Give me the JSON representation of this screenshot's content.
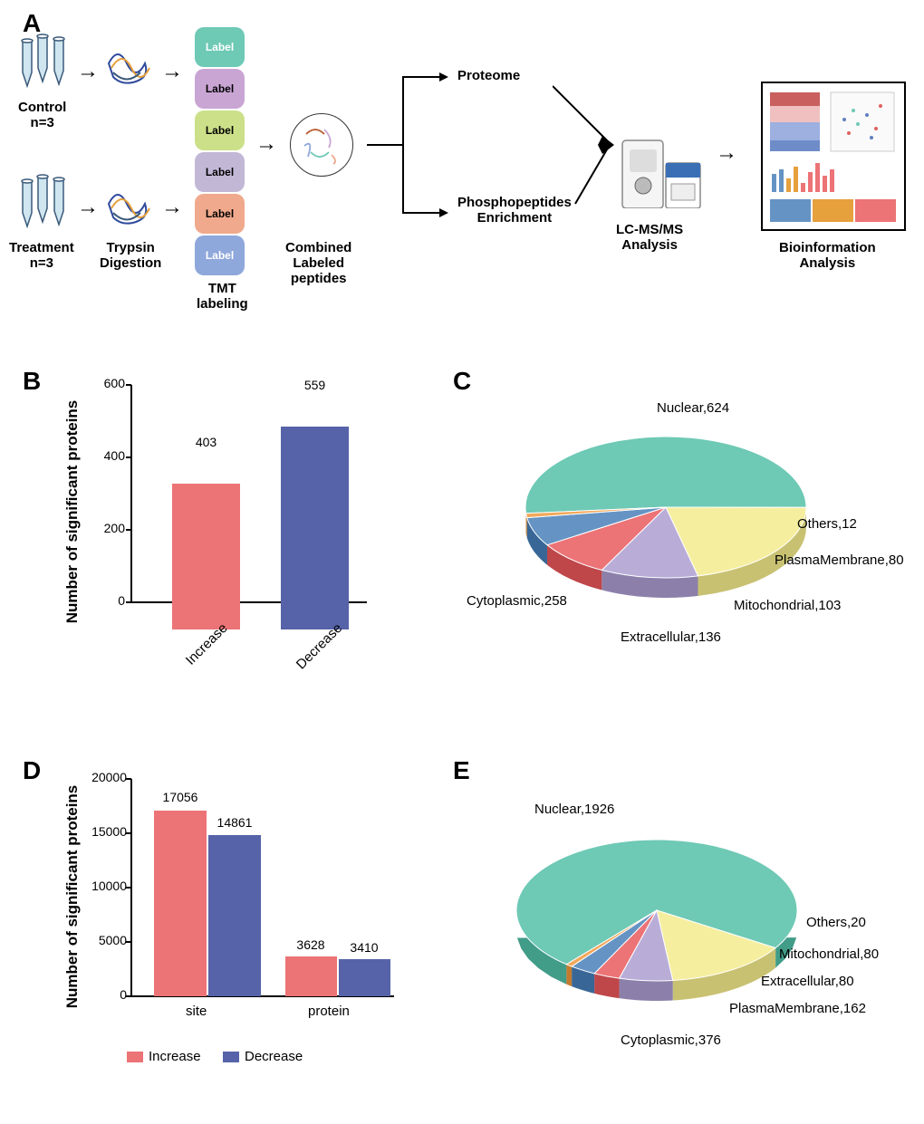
{
  "panels": {
    "A": "A",
    "B": "B",
    "C": "C",
    "D": "D",
    "E": "E"
  },
  "panelA": {
    "control": "Control",
    "control_n": "n=3",
    "treatment": "Treatment",
    "treatment_n": "n=3",
    "trypsin": "Trypsin",
    "digestion": "Digestion",
    "tmt": "TMT",
    "labeling": "labeling",
    "combined": "Combined",
    "labeled": "Labeled",
    "peptides": "peptides",
    "proteome": "Proteome",
    "phospho1": "Phosphopeptides",
    "phospho2": "Enrichment",
    "lcms": "LC-MS/MS",
    "analysis": "Analysis",
    "bioinfo1": "Bioinformation",
    "bioinfo2": "Analysis",
    "tmt_labels": [
      {
        "text": "Label",
        "bg": "#6ec9b5",
        "fg": "#ffffff"
      },
      {
        "text": "Label",
        "bg": "#c9a5d4",
        "fg": "#000000"
      },
      {
        "text": "Label",
        "bg": "#cce089",
        "fg": "#000000"
      },
      {
        "text": "Label",
        "bg": "#c2b8d6",
        "fg": "#000000"
      },
      {
        "text": "Label",
        "bg": "#f0a98c",
        "fg": "#000000"
      },
      {
        "text": "Label",
        "bg": "#8fa8db",
        "fg": "#ffffff"
      }
    ]
  },
  "panelB": {
    "type": "bar",
    "ylabel": "Number of significant proteins",
    "ylim": [
      0,
      600
    ],
    "ytick_step": 200,
    "categories": [
      "Increase",
      "Decrease"
    ],
    "values": [
      403,
      559
    ],
    "bar_colors": [
      "#ec7376",
      "#5663a8"
    ],
    "bar_width": 0.6,
    "value_labels": [
      "403",
      "559"
    ],
    "label_fontsize": 17
  },
  "panelC": {
    "type": "pie",
    "slices": [
      {
        "label": "Nuclear,624",
        "value": 624,
        "color": "#6ec9b5"
      },
      {
        "label": "Cytoplasmic,258",
        "value": 258,
        "color": "#f5ee9f"
      },
      {
        "label": "Extracellular,136",
        "value": 136,
        "color": "#b9add8"
      },
      {
        "label": "Mitochondrial,103",
        "value": 103,
        "color": "#ec7376"
      },
      {
        "label": "PlasmaMembrane,80",
        "value": 80,
        "color": "#6594c4"
      },
      {
        "label": "Others,12",
        "value": 12,
        "color": "#f2a85a"
      }
    ],
    "total": 1213
  },
  "panelD": {
    "type": "bar",
    "ylabel": "Number of significant proteins",
    "ylim": [
      0,
      20000
    ],
    "ytick_step": 5000,
    "groups": [
      "site",
      "protein"
    ],
    "series": [
      {
        "name": "Increase",
        "color": "#ec7376",
        "values": [
          17056,
          3628
        ]
      },
      {
        "name": "Decrease",
        "color": "#5663a8",
        "values": [
          14861,
          3410
        ]
      }
    ],
    "value_labels": [
      [
        "17056",
        "14861"
      ],
      [
        "3628",
        "3410"
      ]
    ],
    "legend": [
      {
        "name": "Increase",
        "color": "#ec7376"
      },
      {
        "name": "Decrease",
        "color": "#5663a8"
      }
    ]
  },
  "panelE": {
    "type": "pie",
    "slices": [
      {
        "label": "Nuclear,1926",
        "value": 1926,
        "color": "#6ec9b5"
      },
      {
        "label": "Cytoplasmic,376",
        "value": 376,
        "color": "#f5ee9f"
      },
      {
        "label": "PlasmaMembrane,162",
        "value": 162,
        "color": "#b9add8"
      },
      {
        "label": "Extracellular,80",
        "value": 80,
        "color": "#ec7376"
      },
      {
        "label": "Mitochondrial,80",
        "value": 80,
        "color": "#6594c4"
      },
      {
        "label": "Others,20",
        "value": 20,
        "color": "#f2a85a"
      }
    ],
    "total": 2644
  },
  "colors": {
    "increase": "#ec7376",
    "decrease": "#5663a8",
    "axis": "#000000",
    "background": "#ffffff"
  }
}
